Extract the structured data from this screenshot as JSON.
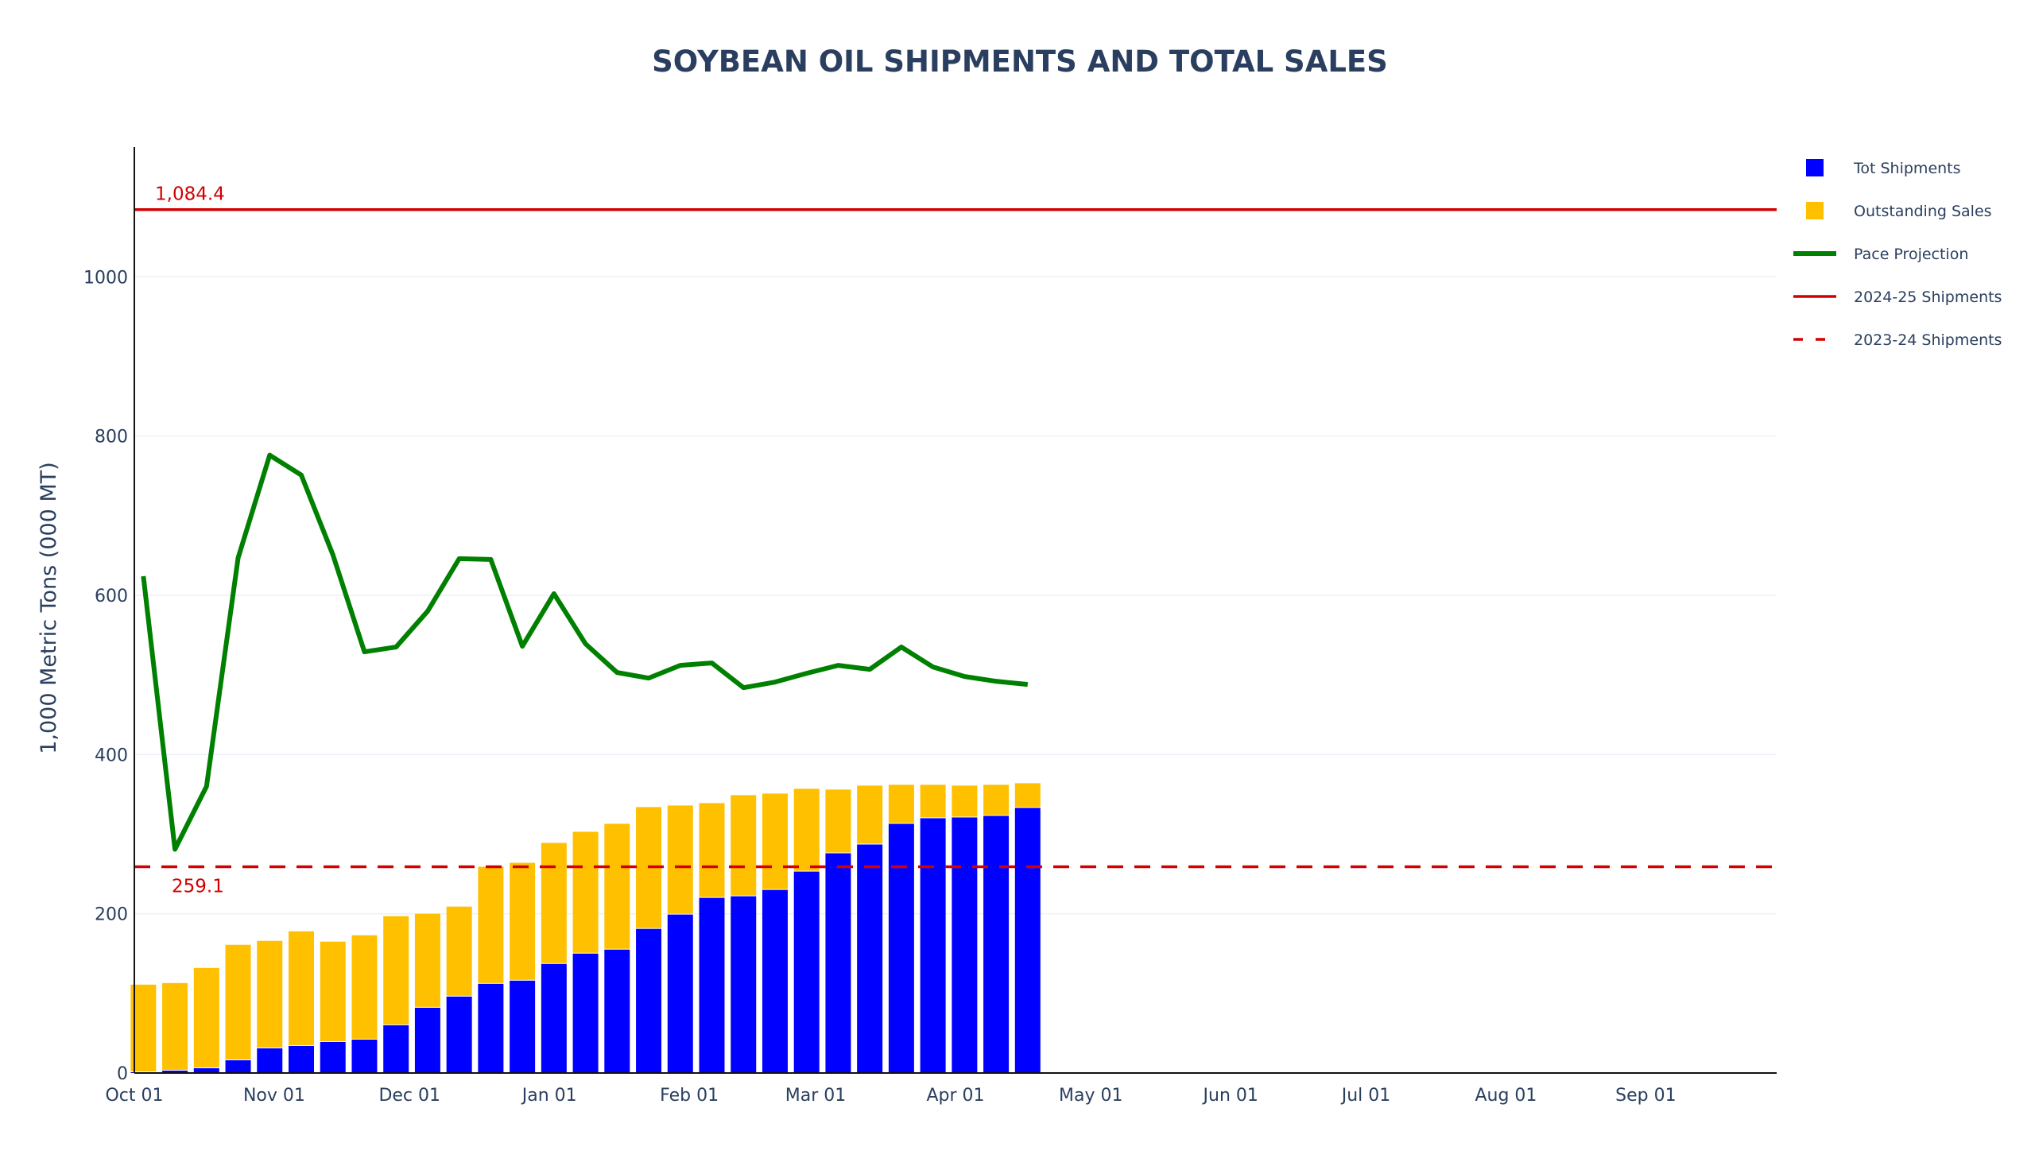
{
  "chart_data": {
    "type": "bar",
    "title": "SOYBEAN OIL SHIPMENTS AND TOTAL SALES",
    "xlabel": "",
    "ylabel": "1,000 Metric Tons (000 MT)",
    "ylim": [
      0,
      1163
    ],
    "xlim": [
      "2024-10-01",
      "2025-09-30"
    ],
    "grid": true,
    "barmode": "stack",
    "legend_position": "top-right",
    "yticks": [
      0,
      200,
      400,
      600,
      800,
      1000
    ],
    "xticks": [
      {
        "date": "2024-10-01",
        "label": "Oct 01"
      },
      {
        "date": "2024-11-01",
        "label": "Nov 01"
      },
      {
        "date": "2024-12-01",
        "label": "Dec 01"
      },
      {
        "date": "2025-01-01",
        "label": "Jan 01"
      },
      {
        "date": "2025-02-01",
        "label": "Feb 01"
      },
      {
        "date": "2025-03-01",
        "label": "Mar 01"
      },
      {
        "date": "2025-04-01",
        "label": "Apr 01"
      },
      {
        "date": "2025-05-01",
        "label": "May 01"
      },
      {
        "date": "2025-06-01",
        "label": "Jun 01"
      },
      {
        "date": "2025-07-01",
        "label": "Jul 01"
      },
      {
        "date": "2025-08-01",
        "label": "Aug 01"
      },
      {
        "date": "2025-09-01",
        "label": "Sep 01"
      }
    ],
    "x_start": "2024-10-03",
    "x_step_days": 7,
    "series": [
      {
        "name": "Tot Shipments",
        "type": "bar",
        "color": "#0000ff",
        "values": [
          1,
          3,
          6,
          16,
          31,
          34,
          39,
          42,
          60,
          82,
          96,
          112,
          116,
          137,
          150,
          155,
          181,
          199,
          220,
          222,
          230,
          253,
          276,
          287,
          313,
          320,
          321,
          323,
          333
        ]
      },
      {
        "name": "Outstanding Sales",
        "type": "bar",
        "color": "#ffc000",
        "values": [
          110,
          110,
          126,
          145,
          135,
          144,
          126,
          131,
          137,
          118,
          113,
          147,
          148,
          152,
          153,
          158,
          153,
          137,
          119,
          127,
          121,
          104,
          80,
          74,
          49,
          42,
          40,
          39,
          31
        ]
      },
      {
        "name": "Pace Projection",
        "type": "line",
        "color": "#008000",
        "values": [
          624,
          281,
          360,
          647,
          776,
          751,
          651,
          529,
          535,
          580,
          646,
          645,
          536,
          602,
          539,
          503,
          496,
          512,
          515,
          484,
          491,
          502,
          512,
          507,
          535,
          510,
          498,
          492,
          488
        ]
      },
      {
        "name": "2024-25 Shipments",
        "type": "hline",
        "color": "#d20000",
        "value": 1084.4,
        "annotation": "1,084.4"
      },
      {
        "name": "2023-24 Shipments",
        "type": "hline-dash",
        "color": "#d20000",
        "value": 259.1,
        "annotation": "259.1"
      }
    ]
  }
}
